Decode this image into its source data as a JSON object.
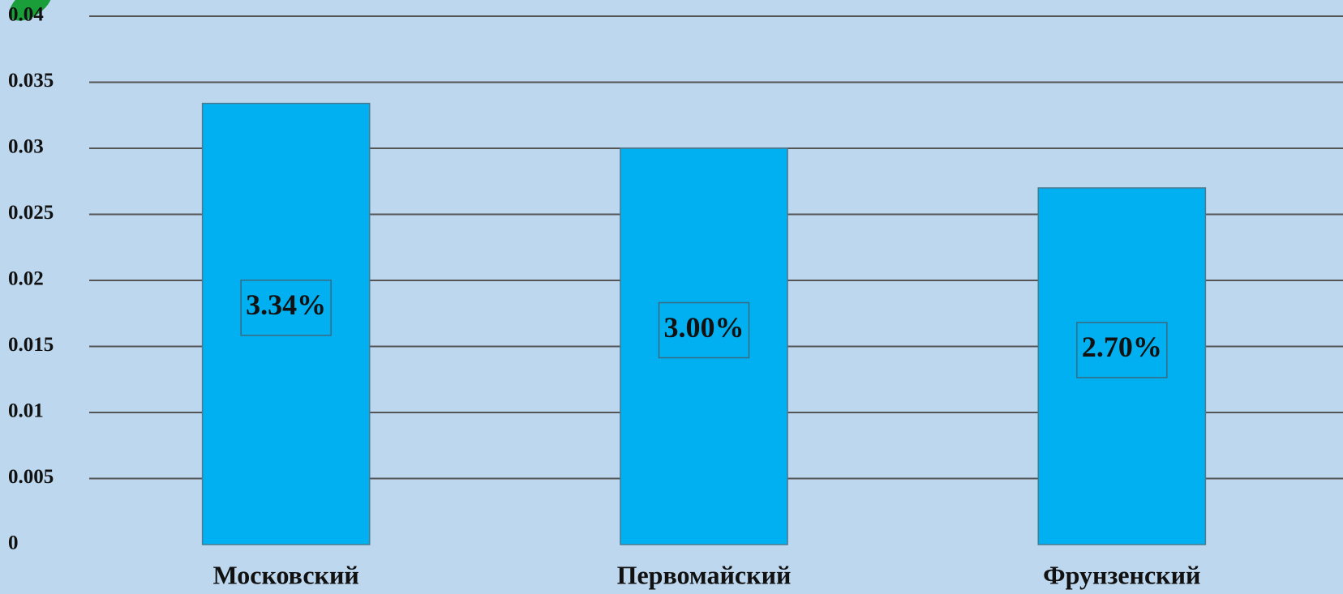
{
  "chart_data": {
    "type": "bar",
    "categories": [
      "Московский",
      "Первомайский",
      "Фрунзенский"
    ],
    "values": [
      0.0334,
      0.03,
      0.027
    ],
    "value_labels": [
      "3.34%",
      "3.00%",
      "2.70%"
    ],
    "color": "#00b0f0",
    "ylim": [
      0,
      0.04
    ],
    "yticks": [
      0,
      0.005,
      0.01,
      0.015,
      0.02,
      0.025,
      0.03,
      0.035,
      0.04
    ],
    "grid": true
  }
}
